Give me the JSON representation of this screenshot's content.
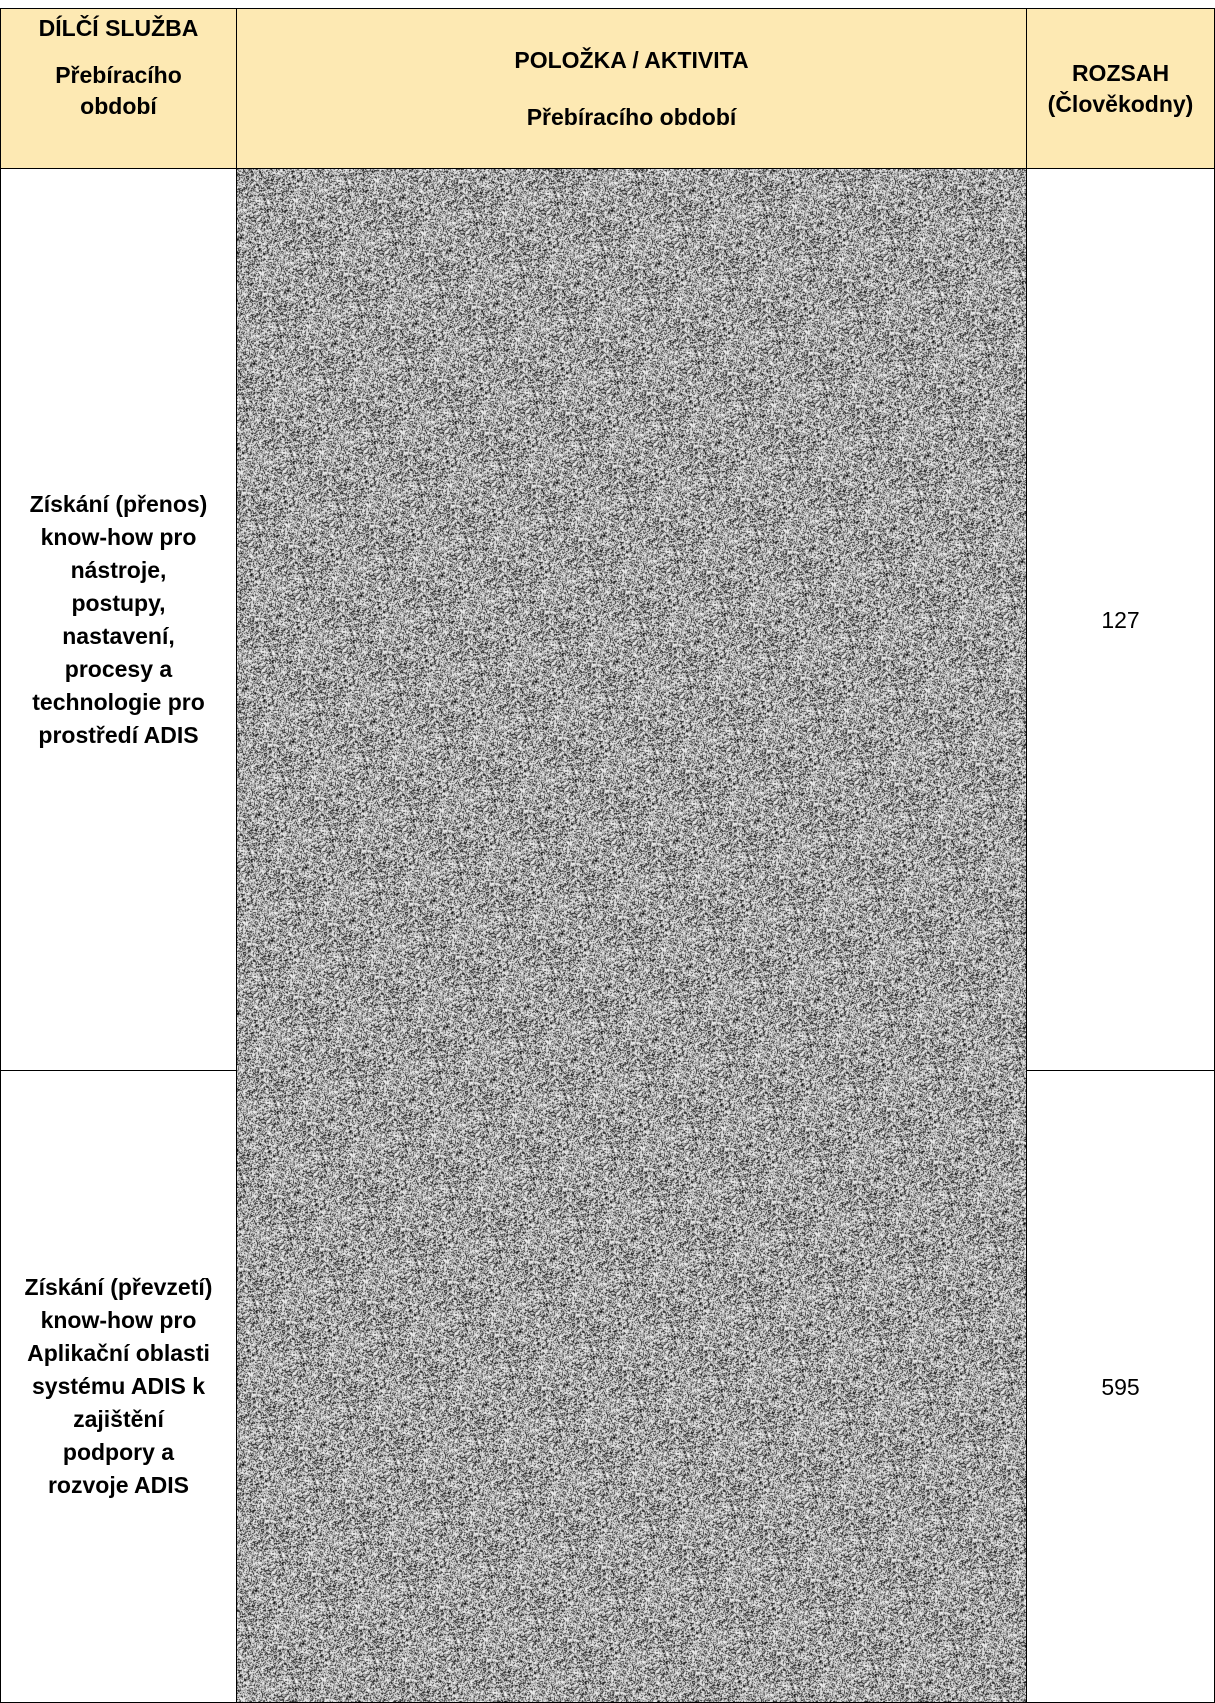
{
  "table": {
    "header": {
      "subservice": {
        "line1": "DÍLČÍ SLUŽBA",
        "line2": "Přebíracího",
        "line3": "období"
      },
      "activity": {
        "line1": "POLOŽKA / AKTIVITA",
        "line2": "Přebíracího období"
      },
      "scope": {
        "line1": "ROZSAH",
        "line2": "(Člověkodny)"
      }
    },
    "rows": [
      {
        "subservice_lines": [
          "Získání (přenos)",
          "know-how pro",
          "nástroje,",
          "postupy,",
          "nastavení,",
          "procesy a",
          "technologie pro",
          "prostředí ADIS"
        ],
        "activity": "",
        "scope": "127"
      },
      {
        "subservice_lines": [
          "Získání (převzetí)",
          "know-how pro",
          "Aplikační oblasti",
          "systému ADIS k",
          "zajištění",
          "podpory a",
          "rozvoje ADIS"
        ],
        "activity": "",
        "scope": "595"
      }
    ]
  },
  "colors": {
    "header_background": "#fde9b3",
    "border": "#000000",
    "redaction_noise": "grayscale"
  }
}
